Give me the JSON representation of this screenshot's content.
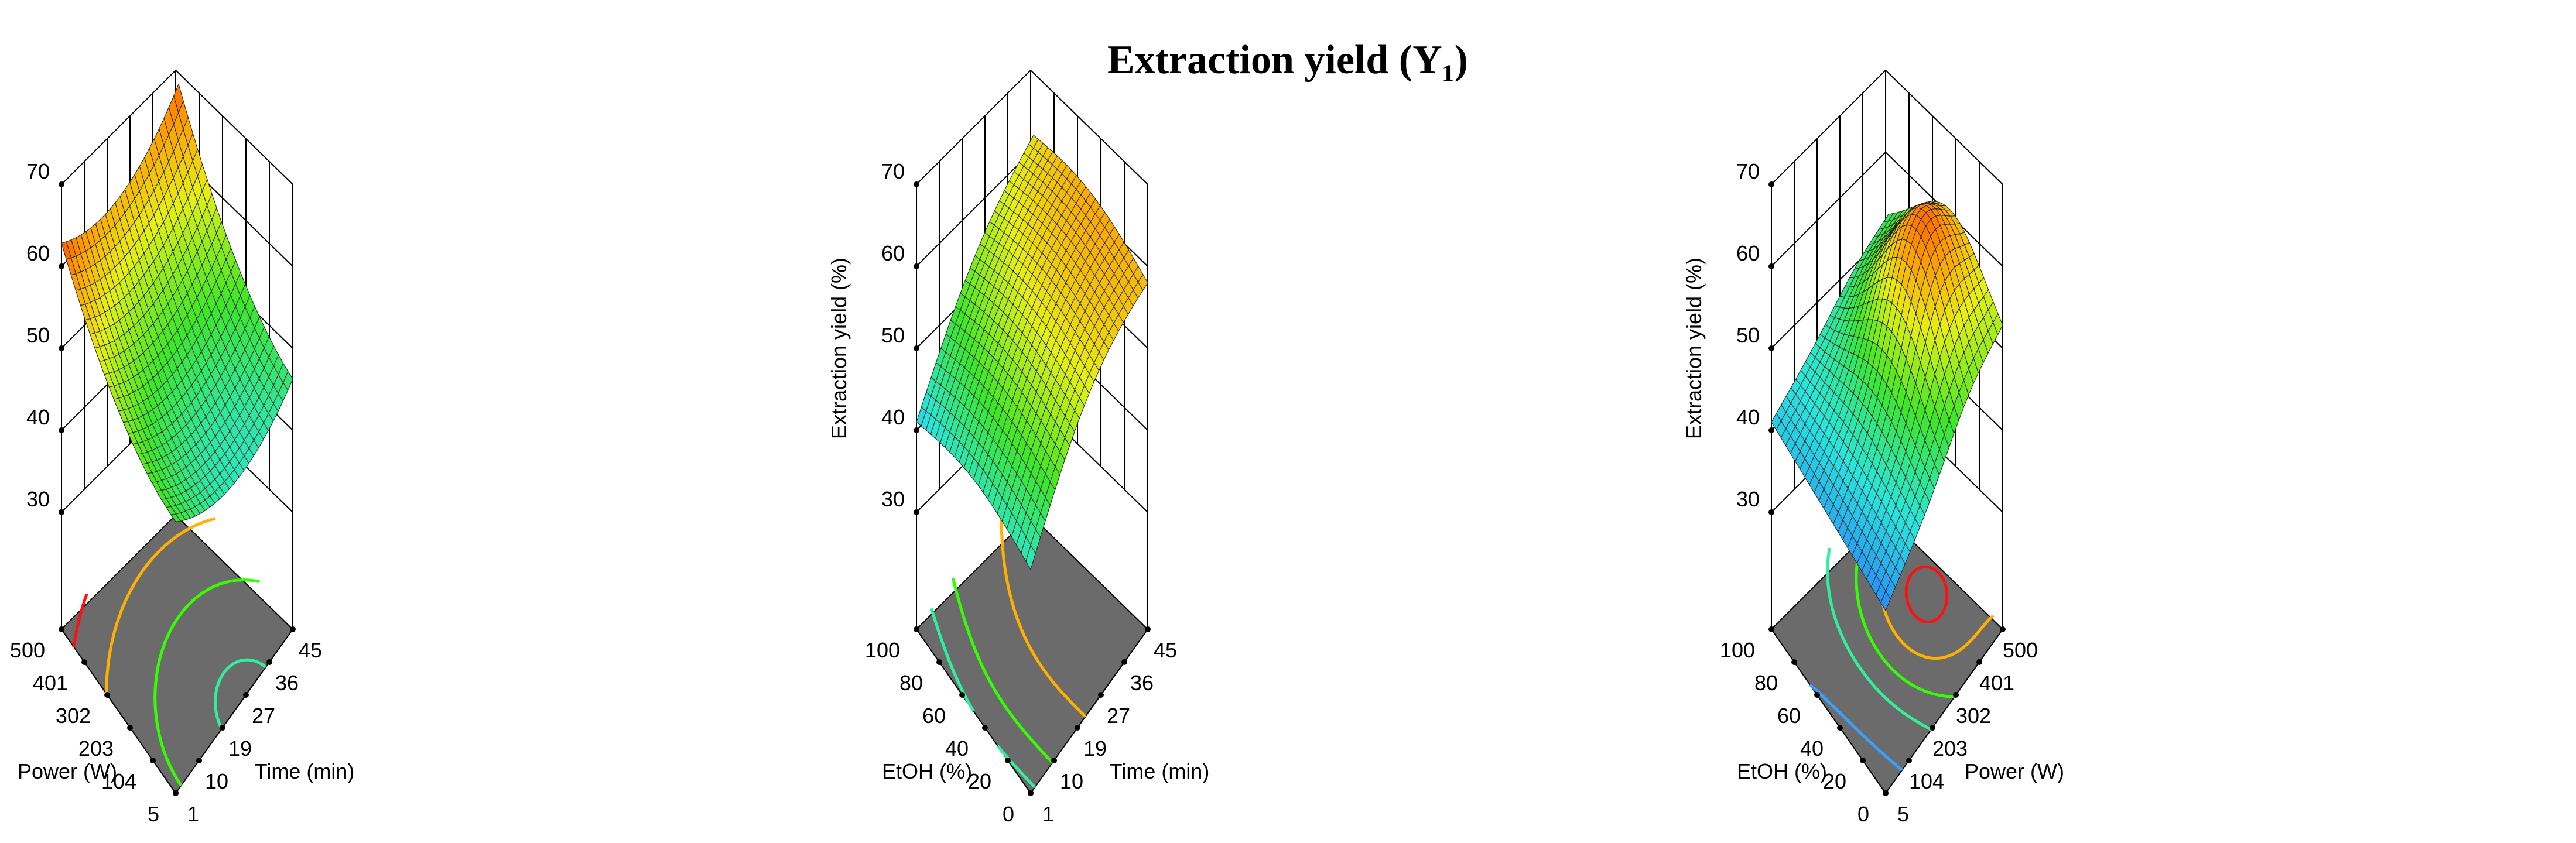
{
  "title": "Extraction yield (Y₁)",
  "colors": {
    "floor": "#6b6b6b",
    "contour_red": "#ff1010",
    "contour_orange": "#ffb000",
    "contour_green": "#33ff00",
    "contour_teal": "#30f0a0",
    "contour_blue": "#3aa0ff"
  },
  "chart_data": [
    {
      "type": "surface",
      "zlabel": "Extraction yield (%)",
      "zticks": [
        "30",
        "40",
        "50",
        "60",
        "70"
      ],
      "zlim": [
        30,
        70
      ],
      "xaxis": {
        "label": "Time (min)",
        "ticks": [
          "1",
          "10",
          "19",
          "27",
          "36",
          "45"
        ],
        "range": [
          1,
          45
        ]
      },
      "yaxis": {
        "label": "Power (W)",
        "ticks": [
          "5",
          "104",
          "203",
          "302",
          "401",
          "500"
        ],
        "range": [
          5,
          500
        ]
      },
      "surface_corners": {
        "time_1_power_5": 46,
        "time_45_power_5": 50,
        "time_1_power_500": 56,
        "time_45_power_500": 66
      },
      "min_value": 41
    },
    {
      "type": "surface",
      "zlabel": "Extraction yield (%)",
      "zticks": [
        "30",
        "40",
        "50",
        "60",
        "70"
      ],
      "zlim": [
        30,
        70
      ],
      "xaxis": {
        "label": "Time (min)",
        "ticks": [
          "1",
          "10",
          "19",
          "27",
          "36",
          "45"
        ],
        "range": [
          1,
          45
        ]
      },
      "yaxis": {
        "label": "EtOH (%)",
        "ticks": [
          "0",
          "20",
          "40",
          "60",
          "80",
          "100"
        ],
        "range": [
          0,
          100
        ]
      },
      "surface_corners": {
        "time_1_etoh_0": 44,
        "time_45_etoh_0": 60,
        "time_1_etoh_100": 42,
        "time_45_etoh_100": 59
      },
      "max_value": 62
    },
    {
      "type": "surface",
      "zlabel": "Extraction yield (%)",
      "zticks": [
        "30",
        "40",
        "50",
        "60",
        "70"
      ],
      "zlim": [
        30,
        70
      ],
      "xaxis": {
        "label": "Power (W)",
        "ticks": [
          "5",
          "104",
          "203",
          "302",
          "401",
          "500"
        ],
        "range": [
          5,
          500
        ]
      },
      "yaxis": {
        "label": "EtOH (%)",
        "ticks": [
          "0",
          "20",
          "40",
          "60",
          "80",
          "100"
        ],
        "range": [
          0,
          100
        ]
      },
      "surface_corners": {
        "power_5_etoh_0": 40,
        "power_500_etoh_0": 59,
        "power_5_etoh_100": 37,
        "power_500_etoh_100": 52
      },
      "max_value": 63,
      "min_value": 37
    }
  ]
}
